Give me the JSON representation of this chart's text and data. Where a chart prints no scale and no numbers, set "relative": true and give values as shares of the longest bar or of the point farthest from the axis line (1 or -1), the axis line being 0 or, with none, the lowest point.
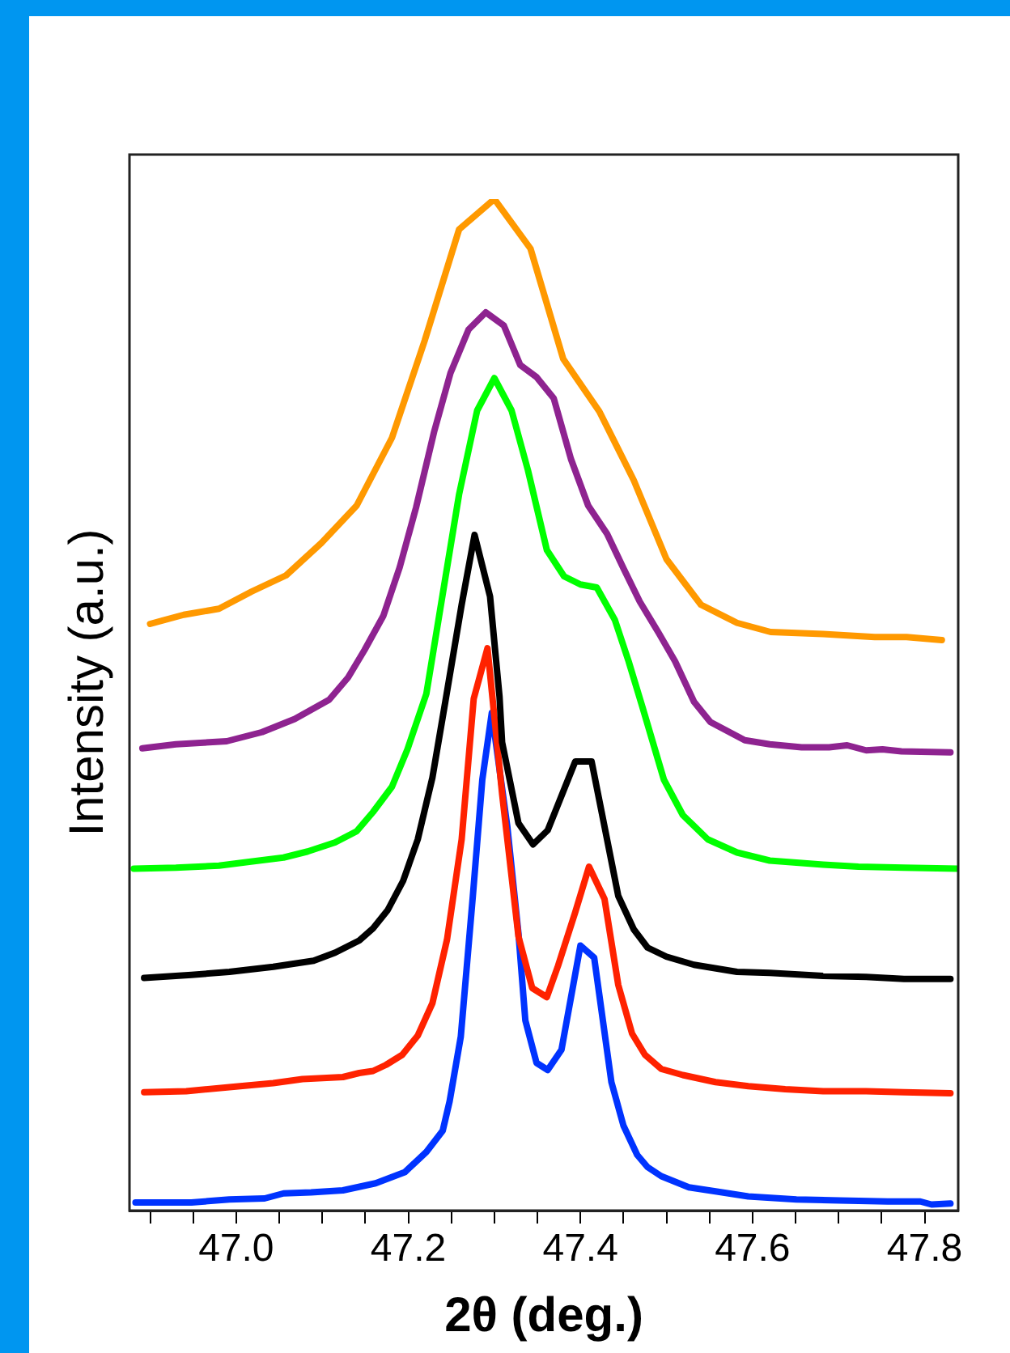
{
  "chart_data": {
    "type": "line",
    "relative": true,
    "xlabel": "2θ (deg.)",
    "ylabel": "Intensity (a.u.)",
    "xlim": [
      46.876,
      47.839
    ],
    "xticks": [
      {
        "value": 46.9,
        "label": null
      },
      {
        "value": 46.95,
        "label": null
      },
      {
        "value": 47.0,
        "label": "47.0"
      },
      {
        "value": 47.05,
        "label": null
      },
      {
        "value": 47.1,
        "label": null
      },
      {
        "value": 47.15,
        "label": null
      },
      {
        "value": 47.2,
        "label": "47.2"
      },
      {
        "value": 47.25,
        "label": null
      },
      {
        "value": 47.3,
        "label": null
      },
      {
        "value": 47.35,
        "label": null
      },
      {
        "value": 47.4,
        "label": "47.4"
      },
      {
        "value": 47.45,
        "label": null
      },
      {
        "value": 47.5,
        "label": null
      },
      {
        "value": 47.55,
        "label": null
      },
      {
        "value": 47.6,
        "label": "47.6"
      },
      {
        "value": 47.65,
        "label": null
      },
      {
        "value": 47.7,
        "label": null
      },
      {
        "value": 47.75,
        "label": null
      },
      {
        "value": 47.8,
        "label": "47.8"
      }
    ],
    "series": [
      {
        "color": "#ff9900",
        "x": [
          46.9,
          46.939,
          46.98,
          47.018,
          47.058,
          47.099,
          47.14,
          47.181,
          47.219,
          47.259,
          47.3,
          47.342,
          47.38,
          47.422,
          47.462,
          47.5,
          47.54,
          47.582,
          47.621,
          47.682,
          47.742,
          47.779,
          47.82
        ],
        "values": [
          0.58,
          0.589,
          0.595,
          0.612,
          0.628,
          0.66,
          0.697,
          0.764,
          0.86,
          0.97,
          1,
          0.951,
          0.842,
          0.79,
          0.722,
          0.644,
          0.599,
          0.581,
          0.572,
          0.57,
          0.567,
          0.567,
          0.564
        ]
      },
      {
        "color": "#8e2390",
        "x": [
          46.891,
          46.93,
          46.989,
          47.03,
          47.068,
          47.108,
          47.13,
          47.149,
          47.171,
          47.19,
          47.209,
          47.23,
          47.249,
          47.27,
          47.29,
          47.311,
          47.33,
          47.349,
          47.369,
          47.389,
          47.409,
          47.431,
          47.45,
          47.469,
          47.491,
          47.51,
          47.532,
          47.551,
          47.591,
          47.62,
          47.657,
          47.689,
          47.71,
          47.732,
          47.751,
          47.773,
          47.83
        ],
        "values": [
          0.457,
          0.461,
          0.464,
          0.473,
          0.486,
          0.505,
          0.527,
          0.554,
          0.588,
          0.636,
          0.695,
          0.77,
          0.828,
          0.871,
          0.888,
          0.875,
          0.836,
          0.824,
          0.803,
          0.743,
          0.697,
          0.669,
          0.635,
          0.602,
          0.571,
          0.543,
          0.503,
          0.483,
          0.465,
          0.461,
          0.458,
          0.458,
          0.46,
          0.455,
          0.456,
          0.454,
          0.453
        ]
      },
      {
        "color": "#00ff00",
        "x": [
          46.881,
          46.93,
          46.98,
          47.017,
          47.055,
          47.083,
          47.115,
          47.14,
          47.159,
          47.181,
          47.199,
          47.221,
          47.237,
          47.259,
          47.28,
          47.3,
          47.32,
          47.339,
          47.361,
          47.381,
          47.4,
          47.419,
          47.44,
          47.456,
          47.472,
          47.497,
          47.519,
          47.548,
          47.582,
          47.62,
          47.682,
          47.723,
          47.776,
          47.839
        ],
        "values": [
          0.338,
          0.339,
          0.341,
          0.345,
          0.349,
          0.355,
          0.364,
          0.375,
          0.394,
          0.419,
          0.456,
          0.511,
          0.594,
          0.708,
          0.791,
          0.823,
          0.791,
          0.732,
          0.653,
          0.627,
          0.619,
          0.616,
          0.584,
          0.543,
          0.498,
          0.426,
          0.391,
          0.367,
          0.354,
          0.346,
          0.342,
          0.34,
          0.339,
          0.338
        ]
      },
      {
        "color": "#000000",
        "x": [
          46.893,
          46.948,
          46.992,
          47.043,
          47.09,
          47.115,
          47.143,
          47.159,
          47.176,
          47.194,
          47.211,
          47.228,
          47.243,
          47.262,
          47.277,
          47.295,
          47.306,
          47.309,
          47.328,
          47.345,
          47.362,
          47.394,
          47.413,
          47.444,
          47.462,
          47.478,
          47.5,
          47.532,
          47.582,
          47.62,
          47.682,
          47.732,
          47.776,
          47.83
        ],
        "values": [
          0.23,
          0.233,
          0.236,
          0.241,
          0.247,
          0.255,
          0.267,
          0.279,
          0.297,
          0.326,
          0.367,
          0.428,
          0.503,
          0.599,
          0.668,
          0.607,
          0.508,
          0.463,
          0.383,
          0.362,
          0.376,
          0.444,
          0.444,
          0.311,
          0.278,
          0.26,
          0.251,
          0.243,
          0.236,
          0.235,
          0.232,
          0.231,
          0.229,
          0.229
        ]
      },
      {
        "color": "#ff2200",
        "x": [
          46.893,
          46.942,
          46.992,
          47.043,
          47.077,
          47.124,
          47.143,
          47.159,
          47.174,
          47.193,
          47.211,
          47.228,
          47.245,
          47.262,
          47.276,
          47.292,
          47.309,
          47.328,
          47.344,
          47.361,
          47.374,
          47.394,
          47.41,
          47.428,
          47.444,
          47.46,
          47.475,
          47.494,
          47.519,
          47.557,
          47.595,
          47.638,
          47.682,
          47.732,
          47.776,
          47.83
        ],
        "values": [
          0.117,
          0.118,
          0.122,
          0.126,
          0.13,
          0.132,
          0.136,
          0.138,
          0.144,
          0.154,
          0.173,
          0.205,
          0.268,
          0.367,
          0.506,
          0.556,
          0.412,
          0.271,
          0.22,
          0.211,
          0.242,
          0.295,
          0.34,
          0.308,
          0.223,
          0.175,
          0.154,
          0.14,
          0.134,
          0.127,
          0.123,
          0.12,
          0.118,
          0.118,
          0.117,
          0.116
        ]
      },
      {
        "color": "#0033ff",
        "x": [
          46.883,
          46.948,
          46.992,
          47.033,
          47.055,
          47.087,
          47.124,
          47.162,
          47.196,
          47.221,
          47.24,
          47.248,
          47.261,
          47.275,
          47.286,
          47.297,
          47.315,
          47.328,
          47.336,
          47.349,
          47.362,
          47.378,
          47.4,
          47.416,
          47.436,
          47.45,
          47.466,
          47.478,
          47.494,
          47.526,
          47.557,
          47.595,
          47.651,
          47.701,
          47.757,
          47.795,
          47.808,
          47.83
        ],
        "values": [
          0.008,
          0.008,
          0.011,
          0.012,
          0.017,
          0.018,
          0.02,
          0.027,
          0.038,
          0.058,
          0.079,
          0.108,
          0.172,
          0.311,
          0.426,
          0.492,
          0.38,
          0.274,
          0.188,
          0.146,
          0.139,
          0.159,
          0.262,
          0.25,
          0.127,
          0.084,
          0.055,
          0.043,
          0.034,
          0.023,
          0.019,
          0.014,
          0.011,
          0.01,
          0.009,
          0.009,
          0.006,
          0.007
        ]
      }
    ]
  }
}
